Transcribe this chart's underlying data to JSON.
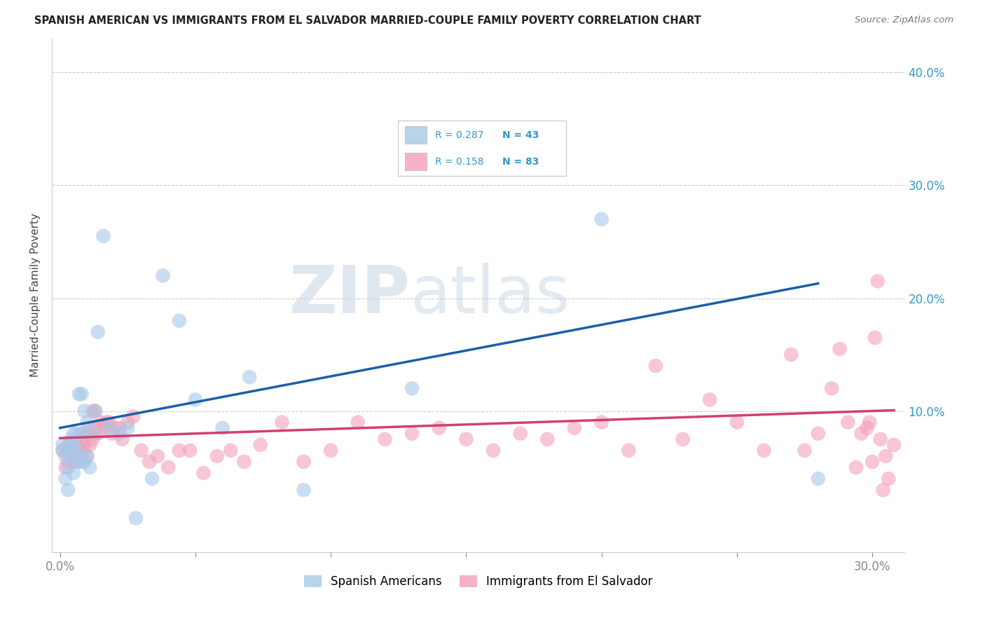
{
  "title": "SPANISH AMERICAN VS IMMIGRANTS FROM EL SALVADOR MARRIED-COUPLE FAMILY POVERTY CORRELATION CHART",
  "source": "Source: ZipAtlas.com",
  "ylabel": "Married-Couple Family Poverty",
  "R_blue": 0.287,
  "N_blue": 43,
  "R_pink": 0.158,
  "N_pink": 83,
  "color_blue": "#a8c8e8",
  "color_pink": "#f4a0b8",
  "line_blue": "#1a5fa8",
  "line_pink": "#d04070",
  "legend_label_blue": "Spanish Americans",
  "legend_label_pink": "Immigrants from El Salvador",
  "watermark_zip": "ZIP",
  "watermark_atlas": "atlas",
  "blue_x": [
    0.001,
    0.001,
    0.002,
    0.002,
    0.003,
    0.003,
    0.003,
    0.004,
    0.004,
    0.005,
    0.005,
    0.005,
    0.006,
    0.006,
    0.007,
    0.007,
    0.007,
    0.008,
    0.008,
    0.008,
    0.009,
    0.009,
    0.01,
    0.01,
    0.011,
    0.012,
    0.013,
    0.014,
    0.016,
    0.018,
    0.022,
    0.025,
    0.028,
    0.034,
    0.038,
    0.044,
    0.05,
    0.06,
    0.07,
    0.09,
    0.13,
    0.2,
    0.28
  ],
  "blue_y": [
    0.065,
    0.07,
    0.04,
    0.06,
    0.03,
    0.05,
    0.07,
    0.06,
    0.075,
    0.045,
    0.07,
    0.08,
    0.065,
    0.08,
    0.055,
    0.06,
    0.115,
    0.055,
    0.08,
    0.115,
    0.055,
    0.1,
    0.06,
    0.09,
    0.05,
    0.08,
    0.1,
    0.17,
    0.255,
    0.085,
    0.08,
    0.085,
    0.005,
    0.04,
    0.22,
    0.18,
    0.11,
    0.085,
    0.13,
    0.03,
    0.12,
    0.27,
    0.04
  ],
  "pink_x": [
    0.001,
    0.002,
    0.003,
    0.003,
    0.004,
    0.004,
    0.005,
    0.005,
    0.006,
    0.006,
    0.007,
    0.007,
    0.008,
    0.008,
    0.009,
    0.009,
    0.01,
    0.01,
    0.011,
    0.011,
    0.012,
    0.012,
    0.013,
    0.013,
    0.014,
    0.015,
    0.016,
    0.017,
    0.018,
    0.019,
    0.02,
    0.022,
    0.023,
    0.025,
    0.027,
    0.03,
    0.033,
    0.036,
    0.04,
    0.044,
    0.048,
    0.053,
    0.058,
    0.063,
    0.068,
    0.074,
    0.082,
    0.09,
    0.1,
    0.11,
    0.12,
    0.13,
    0.14,
    0.15,
    0.16,
    0.17,
    0.18,
    0.19,
    0.2,
    0.21,
    0.22,
    0.23,
    0.24,
    0.25,
    0.26,
    0.27,
    0.275,
    0.28,
    0.285,
    0.288,
    0.291,
    0.294,
    0.296,
    0.298,
    0.299,
    0.3,
    0.301,
    0.302,
    0.303,
    0.304,
    0.305,
    0.306,
    0.308
  ],
  "pink_y": [
    0.065,
    0.05,
    0.055,
    0.065,
    0.065,
    0.07,
    0.055,
    0.06,
    0.055,
    0.07,
    0.06,
    0.065,
    0.065,
    0.08,
    0.07,
    0.075,
    0.06,
    0.08,
    0.07,
    0.085,
    0.1,
    0.075,
    0.085,
    0.1,
    0.08,
    0.09,
    0.085,
    0.09,
    0.09,
    0.08,
    0.085,
    0.085,
    0.075,
    0.09,
    0.095,
    0.065,
    0.055,
    0.06,
    0.05,
    0.065,
    0.065,
    0.045,
    0.06,
    0.065,
    0.055,
    0.07,
    0.09,
    0.055,
    0.065,
    0.09,
    0.075,
    0.08,
    0.085,
    0.075,
    0.065,
    0.08,
    0.075,
    0.085,
    0.09,
    0.065,
    0.14,
    0.075,
    0.11,
    0.09,
    0.065,
    0.15,
    0.065,
    0.08,
    0.12,
    0.155,
    0.09,
    0.05,
    0.08,
    0.085,
    0.09,
    0.055,
    0.165,
    0.215,
    0.075,
    0.03,
    0.06,
    0.04,
    0.07
  ]
}
